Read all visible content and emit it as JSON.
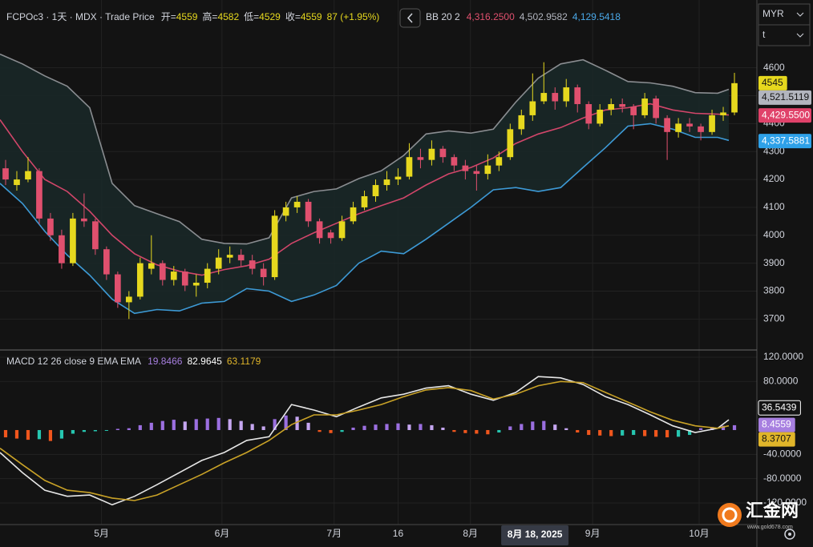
{
  "currency": "MYR",
  "unit": "t",
  "watermark": {
    "name": "汇金网",
    "url": "www.gold678.com"
  },
  "x_axis": {
    "xlim": [
      0,
      135
    ],
    "xticks": [
      {
        "value": 18.1,
        "label": "5月"
      },
      {
        "value": 39.6,
        "label": "6月"
      },
      {
        "value": 59.6,
        "label": "7月"
      },
      {
        "value": 71,
        "label": "16"
      },
      {
        "value": 83.9,
        "label": "8月"
      },
      {
        "value": 105.7,
        "label": "9月"
      },
      {
        "value": 124.7,
        "label": "10月"
      }
    ],
    "crosshair": {
      "value": 95.4,
      "label": "8月 18, 2025"
    }
  },
  "chart_data": [
    {
      "type": "candlestick",
      "title": "FCPOc3 · 1天 · MDX · Trade Price",
      "legend": [
        {
          "label": "开=",
          "value": 4559
        },
        {
          "label": "高=",
          "value": 4582
        },
        {
          "label": "低=",
          "value": 4529
        },
        {
          "label": "收=",
          "value": 4559
        }
      ],
      "change": "87 (+1.95%)",
      "up_color": "#e6d81e",
      "down_color": "#e0506e",
      "x": [
        1,
        3,
        5,
        7,
        9,
        11,
        13,
        15,
        17,
        19,
        21,
        23,
        25,
        27,
        29,
        31,
        33,
        35,
        37,
        39,
        41,
        43,
        45,
        47,
        49,
        51,
        53,
        55,
        57,
        59,
        61,
        63,
        65,
        67,
        69,
        71,
        73,
        75,
        77,
        79,
        81,
        83,
        85,
        87,
        89,
        91,
        93,
        95,
        97,
        99,
        101,
        103,
        105,
        107,
        109,
        111,
        113,
        115,
        117,
        119,
        121,
        123,
        125,
        127,
        129,
        131
      ],
      "open": [
        4240,
        4180,
        4200,
        4230,
        4060,
        4000,
        3900,
        4060,
        4050,
        3950,
        3860,
        3760,
        3780,
        3880,
        3900,
        3840,
        3870,
        3820,
        3830,
        3880,
        3920,
        3930,
        3910,
        3880,
        3850,
        4070,
        4100,
        4120,
        4050,
        4010,
        3990,
        4050,
        4100,
        4140,
        4180,
        4200,
        4210,
        4280,
        4270,
        4310,
        4280,
        4250,
        4230,
        4220,
        4250,
        4280,
        4380,
        4430,
        4480,
        4510,
        4480,
        4530,
        4470,
        4400,
        4450,
        4470,
        4460,
        4430,
        4490,
        4420,
        4370,
        4400,
        4390,
        4370,
        4430,
        4440
      ],
      "high": [
        4270,
        4230,
        4280,
        4240,
        4080,
        4020,
        4080,
        4150,
        4060,
        3960,
        3870,
        3800,
        3920,
        4000,
        3910,
        3890,
        3880,
        3860,
        3900,
        3950,
        3960,
        3950,
        3930,
        3900,
        4090,
        4120,
        4140,
        4130,
        4060,
        4020,
        4070,
        4120,
        4160,
        4200,
        4230,
        4240,
        4330,
        4310,
        4340,
        4320,
        4290,
        4270,
        4250,
        4290,
        4300,
        4400,
        4450,
        4580,
        4620,
        4530,
        4560,
        4540,
        4480,
        4470,
        4490,
        4490,
        4470,
        4510,
        4500,
        4430,
        4420,
        4420,
        4400,
        4450,
        4460,
        4582
      ],
      "low": [
        4180,
        4160,
        4190,
        4040,
        3980,
        3880,
        3890,
        4030,
        3930,
        3840,
        3740,
        3700,
        3770,
        3860,
        3820,
        3820,
        3800,
        3780,
        3810,
        3860,
        3900,
        3890,
        3860,
        3820,
        3840,
        4050,
        4080,
        4030,
        3970,
        3970,
        3980,
        4040,
        4090,
        4120,
        4160,
        4180,
        4200,
        4240,
        4250,
        4260,
        4230,
        4200,
        4160,
        4200,
        4230,
        4270,
        4360,
        4410,
        4470,
        4450,
        4460,
        4440,
        4380,
        4390,
        4430,
        4440,
        4380,
        4420,
        4400,
        4270,
        4350,
        4370,
        4340,
        4360,
        4410,
        4430
      ],
      "close": [
        4200,
        4200,
        4230,
        4060,
        4000,
        3900,
        4060,
        4050,
        3950,
        3860,
        3760,
        3780,
        3900,
        3900,
        3840,
        3870,
        3820,
        3830,
        3880,
        3920,
        3930,
        3910,
        3880,
        3850,
        4070,
        4100,
        4120,
        4050,
        3990,
        3990,
        4050,
        4100,
        4140,
        4180,
        4200,
        4210,
        4280,
        4270,
        4310,
        4280,
        4250,
        4230,
        4220,
        4250,
        4280,
        4380,
        4430,
        4480,
        4510,
        4480,
        4530,
        4470,
        4400,
        4450,
        4470,
        4460,
        4430,
        4490,
        4420,
        4370,
        4400,
        4390,
        4370,
        4430,
        4440,
        4545
      ],
      "ylim": [
        3589,
        4843
      ],
      "yticks": [
        3700,
        3800,
        3900,
        4000,
        4100,
        4200,
        4300,
        4400,
        4500,
        4600
      ],
      "grid": true,
      "bands": {
        "title": "BB 20 2",
        "fill": "#1a2828",
        "x": [
          0,
          4,
          8,
          12,
          16,
          20,
          24,
          28,
          32,
          36,
          40,
          44,
          48,
          52,
          56,
          60,
          64,
          68,
          72,
          76,
          80,
          84,
          88,
          92,
          96,
          100,
          104,
          108,
          112,
          116,
          120,
          124,
          128,
          130
        ],
        "series": [
          {
            "color": "#d2466a",
            "legend_value": "4,316.2500",
            "values": [
              4414,
              4300,
              4200,
              4157,
              4086,
              4000,
              3934,
              3894,
              3871,
              3857,
              3877,
              3891,
              3914,
              3971,
              4009,
              4043,
              4077,
              4106,
              4134,
              4180,
              4220,
              4243,
              4277,
              4329,
              4363,
              4386,
              4420,
              4449,
              4457,
              4471,
              4449,
              4437,
              4434,
              4431
            ]
          },
          {
            "color": "#8a8d91",
            "legend_value": "4,502.9582",
            "values": [
              4649,
              4614,
              4571,
              4534,
              4457,
              4186,
              4106,
              4077,
              4049,
              3986,
              3971,
              3969,
              3991,
              4134,
              4157,
              4166,
              4203,
              4231,
              4286,
              4363,
              4374,
              4366,
              4380,
              4477,
              4563,
              4614,
              4629,
              4591,
              4551,
              4546,
              4534,
              4511,
              4509,
              4523
            ]
          },
          {
            "color": "#3d9ad6",
            "legend_value": "4,129.5418",
            "values": [
              4186,
              4114,
              4014,
              3929,
              3857,
              3771,
              3720,
              3734,
              3729,
              3757,
              3763,
              3809,
              3800,
              3763,
              3786,
              3820,
              3900,
              3943,
              3934,
              3986,
              4043,
              4100,
              4163,
              4171,
              4157,
              4171,
              4243,
              4314,
              4391,
              4400,
              4380,
              4351,
              4351,
              4340
            ]
          }
        ]
      },
      "price_labels": [
        {
          "value": 4545,
          "label": "4545",
          "color": "#e6d81e",
          "text_color": "#131313"
        },
        {
          "value": 4521.5119,
          "label": "4,521.5119",
          "color": "#b2b5be",
          "text_color": "#131313"
        },
        {
          "value": 4429.55,
          "label": "4,429.5500",
          "color": "#e0426a",
          "text_color": "#ffffff"
        },
        {
          "value": 4337.5881,
          "label": "4,337.5881",
          "color": "#2ea1e8",
          "text_color": "#ffffff"
        }
      ]
    },
    {
      "type": "macd",
      "title": "MACD 12 26 close 9 EMA EMA",
      "legend_values": [
        {
          "label": "19.8466",
          "color": "#a77fe0"
        },
        {
          "label": "82.9645",
          "color": "#ffffff"
        },
        {
          "label": "63.1179",
          "color": "#e0b52a"
        }
      ],
      "series": [
        {
          "color": "#e6e6e6",
          "values": [
            -37,
            -70,
            -99,
            -109,
            -107,
            -123,
            -109,
            -90,
            -70,
            -50,
            -37,
            -17,
            -11,
            42,
            33,
            22,
            38,
            53,
            59,
            69,
            73,
            59,
            49,
            62,
            88,
            86,
            75,
            55,
            42,
            25,
            7,
            -4,
            3,
            17
          ]
        },
        {
          "color": "#c9a227",
          "values": [
            -30,
            -57,
            -83,
            -99,
            -103,
            -112,
            -116,
            -107,
            -90,
            -73,
            -54,
            -37,
            -17,
            9,
            25,
            25,
            33,
            42,
            55,
            66,
            70,
            65,
            51,
            59,
            73,
            80,
            78,
            62,
            46,
            30,
            16,
            7,
            3,
            7
          ]
        }
      ],
      "histogram": {
        "colors": {
          "pos_up": "#9b6fe0",
          "pos_down": "#c5a6f0",
          "neg_down": "#f0561d",
          "neg_up": "#26c6b0"
        },
        "values": [
          -12,
          -14,
          -16,
          -15,
          -18,
          -14,
          -6,
          -3,
          -2,
          -1,
          2,
          3,
          8,
          12,
          15,
          17,
          14,
          18,
          19,
          20,
          18,
          15,
          10,
          6,
          18,
          24,
          22,
          12,
          -3,
          -5,
          -3,
          4,
          7,
          9,
          10,
          11,
          9,
          10,
          8,
          4,
          -3,
          -5,
          -6,
          -7,
          -4,
          6,
          10,
          14,
          15,
          9,
          3,
          -4,
          -8,
          -9,
          -10,
          -9,
          -8,
          -10,
          -11,
          -12,
          -11,
          -8,
          3,
          5,
          7,
          8
        ]
      },
      "ylim": [
        -155.6,
        130.5
      ],
      "yticks": [
        {
          "value": 120,
          "label": "120.0000"
        },
        {
          "value": 80,
          "label": "80.0000"
        },
        {
          "value": -40,
          "label": "-40.0000"
        },
        {
          "value": -80,
          "label": "-80.0000"
        },
        {
          "value": -120,
          "label": "-120.0000"
        }
      ],
      "grid": true,
      "price_labels": [
        {
          "value": 36.5439,
          "label": "36.5439",
          "color": "#131313",
          "text_color": "#ffffff"
        },
        {
          "value": 8.4559,
          "label": "8.4559",
          "color": "#a77fe0",
          "text_color": "#ffffff"
        },
        {
          "value": 8.3707,
          "label": "8.3707",
          "color": "#e0b52a",
          "text_color": "#131313"
        }
      ]
    }
  ]
}
